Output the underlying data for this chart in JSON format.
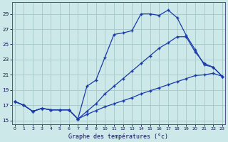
{
  "title": "Graphe des températures (°c)",
  "bg_color": "#cce8e8",
  "grid_color": "#aacccc",
  "line_color": "#1a3aaa",
  "ylim": [
    14.5,
    30.5
  ],
  "xlim": [
    -0.3,
    23.3
  ],
  "yticks": [
    15,
    17,
    19,
    21,
    23,
    25,
    27,
    29
  ],
  "xticks": [
    0,
    1,
    2,
    3,
    4,
    5,
    6,
    7,
    8,
    9,
    10,
    11,
    12,
    13,
    14,
    15,
    16,
    17,
    18,
    19,
    20,
    21,
    22,
    23
  ],
  "upper_x": [
    0,
    1,
    2,
    3,
    4,
    5,
    6,
    7,
    8,
    9,
    10,
    11,
    12,
    13,
    14,
    15,
    16,
    17,
    18,
    19,
    20,
    21,
    22,
    23
  ],
  "upper_y": [
    17.5,
    17.0,
    16.2,
    16.6,
    16.4,
    16.4,
    16.4,
    15.2,
    19.5,
    20.3,
    23.3,
    26.3,
    26.5,
    26.8,
    29.0,
    29.0,
    28.8,
    29.5,
    28.5,
    26.2,
    24.3,
    22.3,
    22.0,
    20.8
  ],
  "middle_x": [
    0,
    1,
    2,
    3,
    4,
    5,
    6,
    7,
    8,
    9,
    10,
    11,
    12,
    13,
    14,
    15,
    16,
    17,
    18,
    19,
    20,
    21,
    22,
    23
  ],
  "middle_y": [
    17.5,
    17.0,
    16.2,
    16.6,
    16.4,
    16.4,
    16.4,
    15.2,
    16.2,
    17.2,
    18.5,
    19.5,
    20.5,
    21.5,
    22.5,
    23.5,
    24.5,
    25.2,
    26.0,
    26.0,
    24.0,
    22.5,
    22.0,
    20.8
  ],
  "lower_x": [
    0,
    1,
    2,
    3,
    4,
    5,
    6,
    7,
    8,
    9,
    10,
    11,
    12,
    13,
    14,
    15,
    16,
    17,
    18,
    19,
    20,
    21,
    22,
    23
  ],
  "lower_y": [
    17.5,
    17.0,
    16.2,
    16.6,
    16.4,
    16.4,
    16.4,
    15.2,
    15.8,
    16.3,
    16.8,
    17.2,
    17.6,
    18.0,
    18.5,
    18.9,
    19.3,
    19.7,
    20.1,
    20.5,
    20.9,
    21.0,
    21.2,
    20.8
  ]
}
